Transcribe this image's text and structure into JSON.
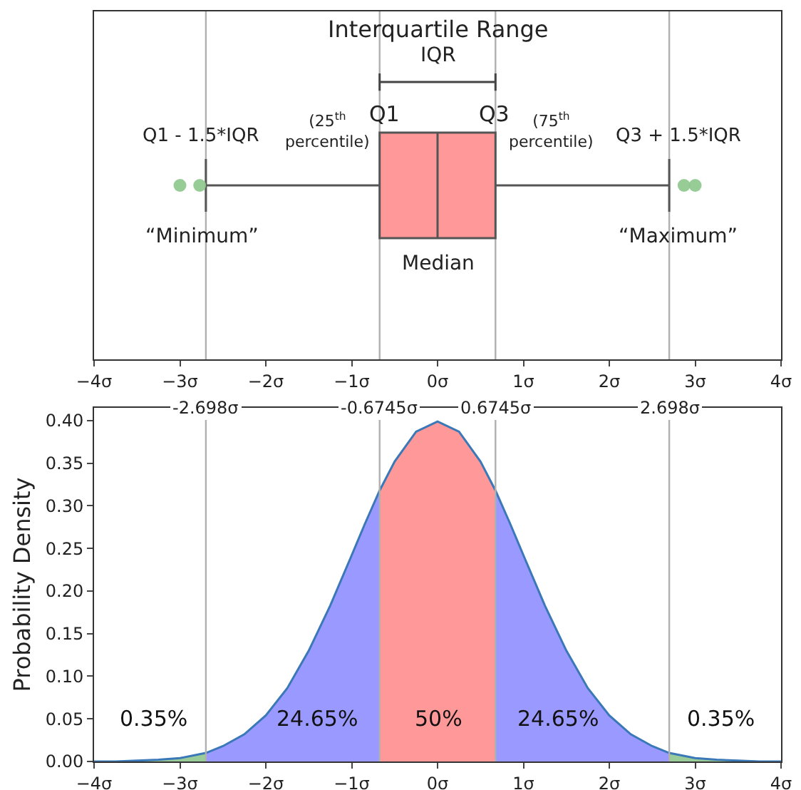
{
  "chart_data": [
    {
      "type": "box",
      "orientation": "horizontal",
      "categories": [
        null
      ],
      "color": "#ff9999",
      "boxes": [
        {
          "low": -2.698,
          "q1": -0.6745,
          "median": 0,
          "q3": 0.6745,
          "high": 2.698,
          "outliers": [
            -3.0,
            -2.77,
            2.87,
            3.0
          ]
        }
      ],
      "xlim": [
        -4,
        4
      ],
      "xticks": [
        {
          "value": -4,
          "label": "−4σ"
        },
        {
          "value": -3,
          "label": "−3σ"
        },
        {
          "value": -2,
          "label": "−2σ"
        },
        {
          "value": -1,
          "label": "−1σ"
        },
        {
          "value": 0,
          "label": "0σ"
        },
        {
          "value": 1,
          "label": "1σ"
        },
        {
          "value": 2,
          "label": "2σ"
        },
        {
          "value": 3,
          "label": "3σ"
        },
        {
          "value": 4,
          "label": "4σ"
        }
      ],
      "tick_labels": "x",
      "grid": false,
      "ref_lines": [
        {
          "axis": "x",
          "value": -2.698
        },
        {
          "axis": "x",
          "value": -0.6745
        },
        {
          "axis": "x",
          "value": 0.6745
        },
        {
          "axis": "x",
          "value": 2.698
        }
      ],
      "annotations": [
        "Interquartile Range",
        "IQR",
        "(25$^{th}$\npercentile)",
        "Q1",
        "Q3",
        "(75$^{th}$\npercentile)",
        "Q1 - 1.5*IQR",
        "Q3 + 1.5*IQR",
        "“Minimum”",
        "“Maximum”",
        "Median"
      ]
    },
    {
      "type": "area",
      "ylabel": "Probability Density",
      "series": [
        {
          "color": "#99cc99",
          "x": [
            -4,
            -3.75,
            -3.5,
            -3.25,
            -3,
            -2.698
          ],
          "values": [
            0.0,
            0.0,
            0.001,
            0.002,
            0.004,
            0.01
          ]
        },
        {
          "color": "#9999ff",
          "x": [
            -2.698,
            -2.5,
            -2.25,
            -2,
            -1.75,
            -1.5,
            -1.25,
            -1,
            -0.85,
            -0.6745
          ],
          "values": [
            0.01,
            0.018,
            0.032,
            0.054,
            0.086,
            0.13,
            0.183,
            0.242,
            0.278,
            0.318
          ]
        },
        {
          "color": "#ff9999",
          "x": [
            -0.6745,
            -0.5,
            -0.25,
            0,
            0.25,
            0.5,
            0.6745
          ],
          "values": [
            0.318,
            0.352,
            0.387,
            0.399,
            0.387,
            0.352,
            0.318
          ]
        },
        {
          "color": "#9999ff",
          "x": [
            0.6745,
            0.85,
            1,
            1.25,
            1.5,
            1.75,
            2,
            2.25,
            2.5,
            2.698
          ],
          "values": [
            0.318,
            0.278,
            0.242,
            0.183,
            0.13,
            0.086,
            0.054,
            0.032,
            0.018,
            0.01
          ]
        },
        {
          "color": "#99cc99",
          "x": [
            2.698,
            3,
            3.25,
            3.5,
            3.75,
            4
          ],
          "values": [
            0.01,
            0.004,
            0.002,
            0.001,
            0.0,
            0.0
          ]
        },
        {
          "type": "line",
          "color": "#3b78b8",
          "x": [
            -4,
            -3.75,
            -3.5,
            -3.25,
            -3,
            -2.698,
            -2.5,
            -2.25,
            -2,
            -1.75,
            -1.5,
            -1.25,
            -1,
            -0.85,
            -0.6745,
            -0.5,
            -0.25,
            0,
            0.25,
            0.5,
            0.6745,
            0.85,
            1,
            1.25,
            1.5,
            1.75,
            2,
            2.25,
            2.5,
            2.698,
            3,
            3.25,
            3.5,
            3.75,
            4
          ],
          "values": [
            0.0,
            0.0,
            0.001,
            0.002,
            0.004,
            0.01,
            0.018,
            0.032,
            0.054,
            0.086,
            0.13,
            0.183,
            0.242,
            0.278,
            0.318,
            0.352,
            0.387,
            0.399,
            0.387,
            0.352,
            0.318,
            0.278,
            0.242,
            0.183,
            0.13,
            0.086,
            0.054,
            0.032,
            0.018,
            0.01,
            0.004,
            0.002,
            0.001,
            0.0,
            0.0
          ]
        }
      ],
      "xlim": [
        -4,
        4
      ],
      "xticks": [
        {
          "value": -4,
          "label": "−4σ"
        },
        {
          "value": -3,
          "label": "−3σ"
        },
        {
          "value": -2,
          "label": "−2σ"
        },
        {
          "value": -1,
          "label": "−1σ"
        },
        {
          "value": 0,
          "label": "0σ"
        },
        {
          "value": 1,
          "label": "1σ"
        },
        {
          "value": 2,
          "label": "2σ"
        },
        {
          "value": 3,
          "label": "3σ"
        },
        {
          "value": 4,
          "label": "4σ"
        }
      ],
      "ylim": [
        0,
        0.415
      ],
      "yticks": [
        {
          "value": 0,
          "label": "0.00"
        },
        {
          "value": 0.05,
          "label": "0.05"
        },
        {
          "value": 0.1,
          "label": "0.10"
        },
        {
          "value": 0.15,
          "label": "0.15"
        },
        {
          "value": 0.2,
          "label": "0.20"
        },
        {
          "value": 0.25,
          "label": "0.25"
        },
        {
          "value": 0.3,
          "label": "0.30"
        },
        {
          "value": 0.35,
          "label": "0.35"
        },
        {
          "value": 0.4,
          "label": "0.40"
        }
      ],
      "grid": false,
      "ref_lines": [
        {
          "axis": "x",
          "value": -2.698,
          "label": "-2.698σ"
        },
        {
          "axis": "x",
          "value": -0.6745,
          "label": "-0.6745σ"
        },
        {
          "axis": "x",
          "value": 0.6745,
          "label": "0.6745σ"
        },
        {
          "axis": "x",
          "value": 2.698,
          "label": "2.698σ"
        }
      ],
      "annotations": [
        "0.35%",
        "24.65%",
        "50%",
        "24.65%",
        "0.35%"
      ]
    }
  ]
}
